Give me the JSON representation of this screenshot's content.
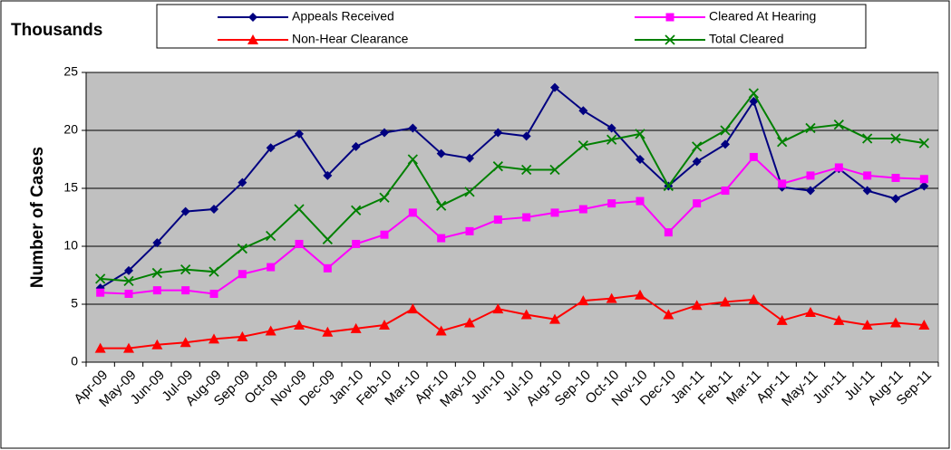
{
  "chart_data": {
    "type": "line",
    "title": "Thousands",
    "y_label": "Number of Cases",
    "categories": [
      "Apr-09",
      "May-09",
      "Jun-09",
      "Jul-09",
      "Aug-09",
      "Sep-09",
      "Oct-09",
      "Nov-09",
      "Dec-09",
      "Jan-10",
      "Feb-10",
      "Mar-10",
      "Apr-10",
      "May-10",
      "Jun-10",
      "Jul-10",
      "Aug-10",
      "Sep-10",
      "Oct-10",
      "Nov-10",
      "Dec-10",
      "Jan-11",
      "Feb-11",
      "Mar-11",
      "Apr-11",
      "May-11",
      "Jun-11",
      "Jul-11",
      "Aug-11",
      "Sep-11"
    ],
    "series": [
      {
        "name": "Appeals Received",
        "color": "#000080",
        "marker": "diamond",
        "values": [
          6.4,
          7.9,
          10.3,
          13.0,
          13.2,
          15.5,
          18.5,
          19.7,
          16.1,
          18.6,
          19.8,
          20.2,
          18.0,
          17.6,
          19.8,
          19.5,
          23.7,
          21.7,
          20.2,
          17.5,
          15.2,
          17.3,
          18.8,
          22.5,
          15.1,
          14.8,
          16.7,
          14.8,
          14.1,
          15.2
        ]
      },
      {
        "name": "Cleared At Hearing",
        "color": "#ff00ff",
        "marker": "square",
        "values": [
          6.0,
          5.9,
          6.2,
          6.2,
          5.9,
          7.6,
          8.2,
          10.2,
          8.1,
          10.2,
          11.0,
          12.9,
          10.7,
          11.3,
          12.3,
          12.5,
          12.9,
          13.2,
          13.7,
          13.9,
          11.2,
          13.7,
          14.8,
          17.7,
          15.4,
          16.1,
          16.8,
          16.1,
          15.9,
          15.8
        ]
      },
      {
        "name": "Non-Hear Clearance",
        "color": "#ff0000",
        "marker": "triangle",
        "values": [
          1.2,
          1.2,
          1.5,
          1.7,
          2.0,
          2.2,
          2.7,
          3.2,
          2.6,
          2.9,
          3.2,
          4.6,
          2.7,
          3.4,
          4.6,
          4.1,
          3.7,
          5.3,
          5.5,
          5.8,
          4.1,
          4.9,
          5.2,
          5.4,
          3.6,
          4.3,
          3.6,
          3.2,
          3.4,
          3.2
        ]
      },
      {
        "name": "Total Cleared",
        "color": "#008000",
        "marker": "x",
        "values": [
          7.2,
          7.0,
          7.7,
          8.0,
          7.8,
          9.8,
          10.9,
          13.2,
          10.6,
          13.1,
          14.2,
          17.5,
          13.5,
          14.7,
          16.9,
          16.6,
          16.6,
          18.7,
          19.2,
          19.7,
          15.2,
          18.6,
          20.0,
          23.2,
          19.0,
          20.2,
          20.5,
          19.3,
          19.3,
          18.9
        ]
      }
    ],
    "ylim": [
      0,
      25
    ],
    "yticks": [
      0,
      5,
      10,
      15,
      20,
      25
    ],
    "grid": true,
    "legend": "top",
    "plot_background": "#c0c0c0"
  }
}
